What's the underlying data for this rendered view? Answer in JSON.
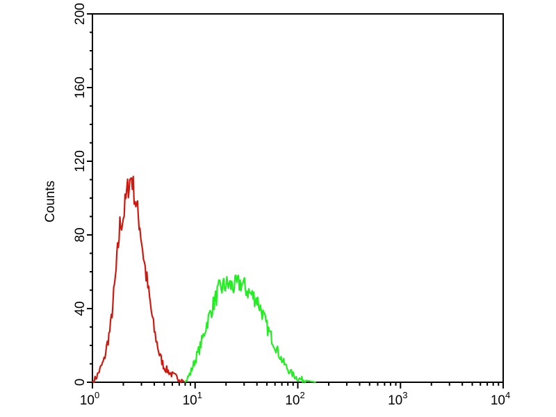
{
  "chart_data": {
    "type": "line",
    "title": "",
    "xlabel": "",
    "ylabel": "Counts",
    "xscale": "log",
    "xlim": [
      1,
      10000
    ],
    "ylim": [
      0,
      200
    ],
    "grid": false,
    "x_ticks": [
      {
        "base": "10",
        "exp": "0",
        "value": 1
      },
      {
        "base": "10",
        "exp": "1",
        "value": 10
      },
      {
        "base": "10",
        "exp": "2",
        "value": 100
      },
      {
        "base": "10",
        "exp": "3",
        "value": 1000
      },
      {
        "base": "10",
        "exp": "4",
        "value": 10000
      }
    ],
    "y_ticks": [
      "0",
      "40",
      "80",
      "120",
      "160",
      "200"
    ],
    "series": [
      {
        "color": "#cc1a10",
        "x": [
          1.0,
          1.1,
          1.3,
          1.5,
          1.7,
          1.85,
          2.0,
          2.2,
          2.4,
          2.6,
          2.9,
          3.2,
          3.6,
          4.0,
          4.5,
          5.0,
          6.0,
          7.0,
          8.0
        ],
        "y": [
          0,
          3,
          12,
          30,
          60,
          85,
          90,
          105,
          112,
          100,
          85,
          65,
          45,
          28,
          15,
          8,
          4,
          2,
          0
        ]
      },
      {
        "color": "#22ee22",
        "x": [
          8,
          9,
          10,
          11,
          12,
          13,
          15,
          17,
          20,
          24,
          28,
          32,
          36,
          40,
          45,
          50,
          60,
          70,
          80,
          90,
          100,
          120,
          150
        ],
        "y": [
          0,
          5,
          12,
          18,
          25,
          32,
          42,
          50,
          53,
          52,
          54,
          50,
          47,
          45,
          38,
          30,
          20,
          12,
          7,
          4,
          2,
          1,
          0
        ]
      }
    ]
  }
}
